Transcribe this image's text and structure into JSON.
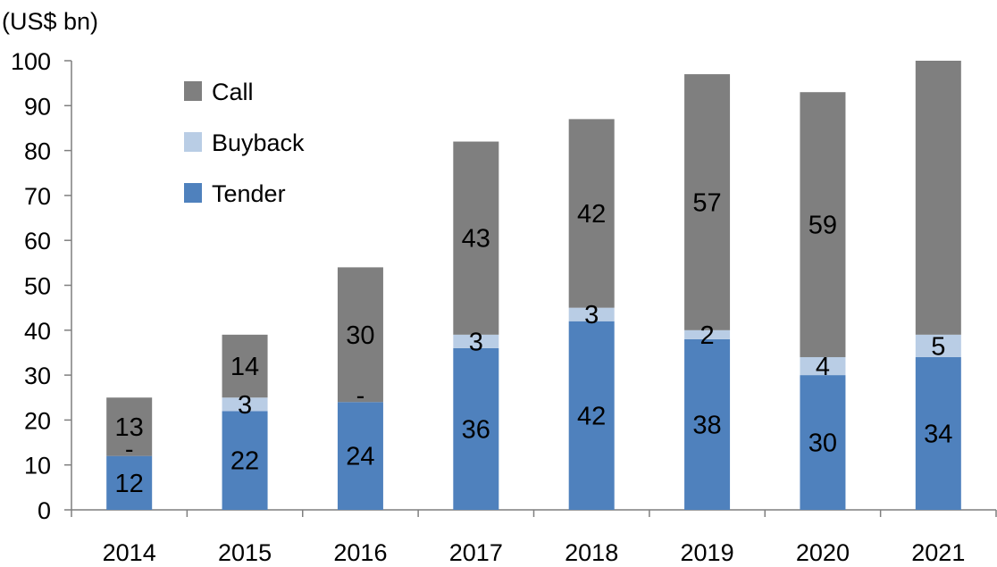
{
  "chart_data": {
    "type": "bar",
    "stacked": true,
    "ylabel": "(US$ bn)",
    "ylim": [
      0,
      100
    ],
    "yticks": [
      0,
      10,
      20,
      30,
      40,
      50,
      60,
      70,
      80,
      90,
      100
    ],
    "categories": [
      "2014",
      "2015",
      "2016",
      "2017",
      "2018",
      "2019",
      "2020",
      "2021"
    ],
    "series": [
      {
        "name": "Tender",
        "color": "#4f81bd",
        "values": [
          12,
          22,
          24,
          36,
          42,
          38,
          30,
          34
        ],
        "labels": [
          "12",
          "22",
          "24",
          "36",
          "42",
          "38",
          "30",
          "34"
        ]
      },
      {
        "name": "Buyback",
        "color": "#b9cde5",
        "values": [
          0,
          3,
          0,
          3,
          3,
          2,
          4,
          5
        ],
        "labels": [
          "-",
          "3",
          "-",
          "3",
          "3",
          "2",
          "4",
          "5"
        ]
      },
      {
        "name": "Call",
        "color": "#7f7f7f",
        "values": [
          13,
          14,
          30,
          43,
          42,
          57,
          59,
          61
        ],
        "labels": [
          "13",
          "14",
          "30",
          "43",
          "42",
          "57",
          "59",
          ""
        ]
      }
    ],
    "legend": {
      "placement": "top-left",
      "order": [
        "Call",
        "Buyback",
        "Tender"
      ]
    },
    "grid": false
  }
}
